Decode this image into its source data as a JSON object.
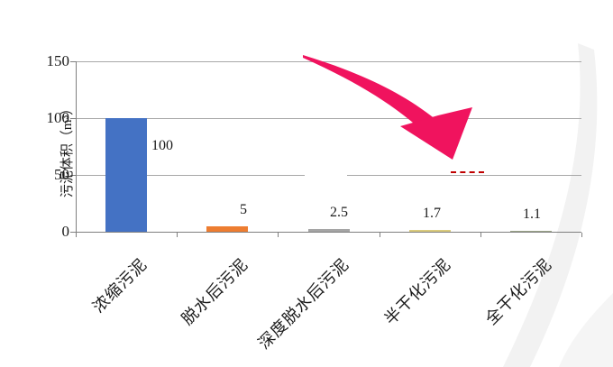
{
  "page": {
    "background": "#FFFFFF"
  },
  "chart_data": {
    "type": "bar",
    "title": "",
    "xlabel": "",
    "ylabel": "污泥体积（m³）",
    "categories": [
      "浓缩污泥",
      "脱水后污泥",
      "深度脱水后污泥",
      "半干化污泥",
      "全干化污泥"
    ],
    "values": [
      100,
      5,
      2.5,
      1.7,
      1.1
    ],
    "data_labels": [
      "100",
      "5",
      "2.5",
      "1.7",
      "1.1"
    ],
    "ytick_labels": [
      "150",
      "100",
      "50",
      "0"
    ],
    "yticks": [
      150,
      100,
      50,
      0
    ],
    "ylim": [
      0,
      150
    ],
    "grid": true,
    "legend": false,
    "bar_colors": [
      "#4472C4",
      "#ED7D31",
      "#A5A5A5",
      "#DACB7D",
      "#9AA388"
    ],
    "category_label_rotation_deg": -45,
    "annotations": [
      {
        "name": "decrease-arrow",
        "type": "curved-swoosh-arrow",
        "color": "#F0135E"
      },
      {
        "name": "red-dashed-mark",
        "type": "dashed-line-segment",
        "color": "#C00000",
        "at_value": 50
      }
    ]
  },
  "colors": {
    "gridline": "#A8A8A8",
    "axis": "#7F7F7F",
    "text": "#1A1A1A",
    "background_swoosh": "#F2F2F2"
  }
}
